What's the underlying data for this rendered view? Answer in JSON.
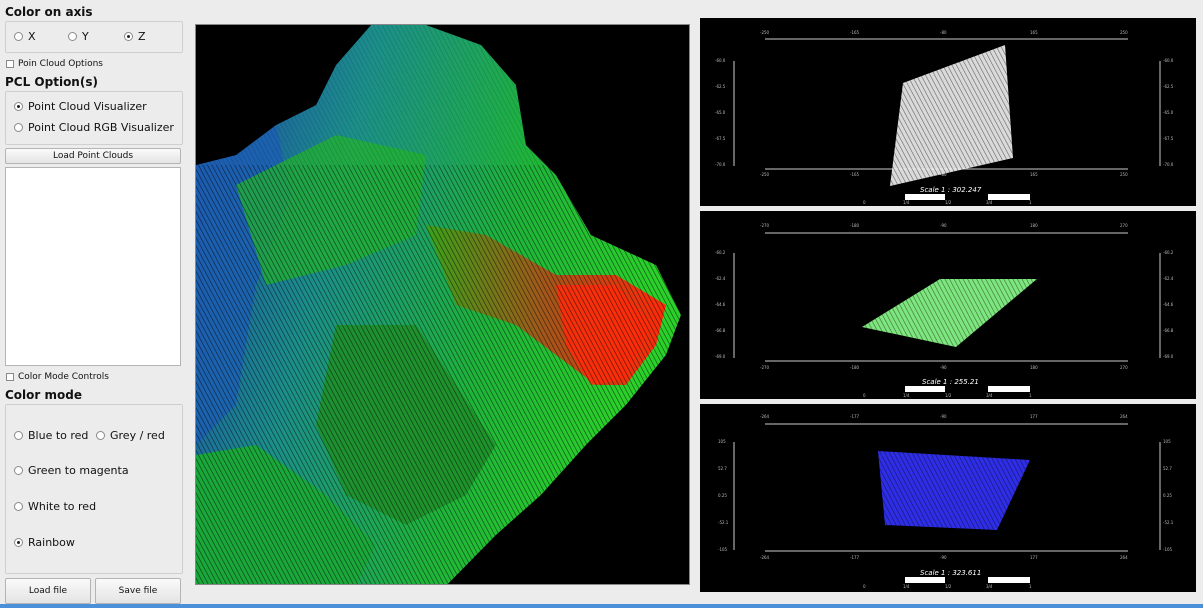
{
  "axis": {
    "title": "Color on axis",
    "options": [
      "X",
      "Y",
      "Z"
    ],
    "selected": "Z"
  },
  "point_cloud_options_label": "Poin Cloud Options",
  "pcl": {
    "title": "PCL Option(s)",
    "options": [
      "Point Cloud Visualizer",
      "Point Cloud RGB Visualizer"
    ],
    "selected": "Point Cloud Visualizer"
  },
  "load_point_clouds_label": "Load Point Clouds",
  "color_mode_controls_label": "Color Mode Controls",
  "color_mode": {
    "title": "Color mode",
    "options": [
      "Blue to red",
      "Grey / red",
      "Green to magenta",
      "White to red",
      "Rainbow"
    ],
    "selected": "Rainbow"
  },
  "buttons": {
    "load_file": "Load file",
    "save_file": "Save file"
  },
  "colors": {
    "selection_blue": "#4a90d9",
    "panel_bg": "#ececec",
    "viewer_bg": "#000000"
  },
  "views": [
    {
      "scale": "Scale 1 : 302.247",
      "cloud_color": "#f2f2f2",
      "top_ticks": [
        "-250",
        "-165",
        "-80",
        "165",
        "250"
      ],
      "bottom_ticks": [
        "-250",
        "-165",
        "-80",
        "165",
        "250"
      ],
      "left_ticks": [
        "-60.0",
        "-62.5",
        "-65.0",
        "-67.5",
        "-70.0"
      ],
      "right_ticks": [
        "-60.0",
        "-62.5",
        "-65.0",
        "-67.5",
        "-70.0"
      ],
      "scale_marks": [
        "0",
        "1/4",
        "1/2",
        "3/4",
        "1"
      ]
    },
    {
      "scale": "Scale 1 : 255.21",
      "cloud_color": "#8cff8c",
      "top_ticks": [
        "-270",
        "-180",
        "-90",
        "180",
        "270"
      ],
      "bottom_ticks": [
        "-270",
        "-180",
        "-90",
        "180",
        "270"
      ],
      "left_ticks": [
        "-60.2",
        "-62.4",
        "-64.6",
        "-66.8",
        "-69.0"
      ],
      "right_ticks": [
        "-60.2",
        "-62.4",
        "-64.6",
        "-66.8",
        "-69.0"
      ],
      "scale_marks": [
        "0",
        "1/4",
        "1/2",
        "3/4",
        "1"
      ]
    },
    {
      "scale": "Scale 1 : 323.611",
      "cloud_color": "#3333ff",
      "top_ticks": [
        "-264",
        "-177",
        "-90",
        "177",
        "264"
      ],
      "bottom_ticks": [
        "-264",
        "-177",
        "-90",
        "177",
        "264"
      ],
      "left_ticks": [
        "105",
        "52.7",
        "0.25",
        "-52.1",
        "-105"
      ],
      "right_ticks": [
        "105",
        "52.7",
        "0.25",
        "-52.1",
        "-105"
      ],
      "scale_marks": [
        "0",
        "1/4",
        "1/2",
        "3/4",
        "1"
      ]
    }
  ]
}
